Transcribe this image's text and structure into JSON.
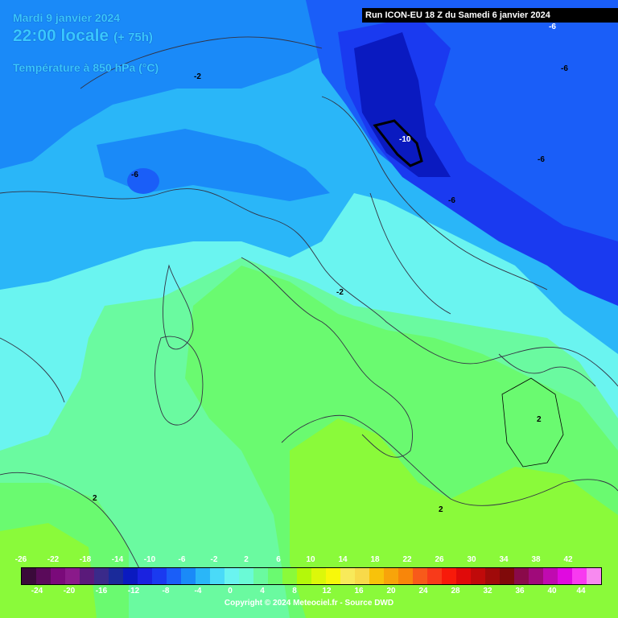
{
  "header": {
    "date": "Mardi 9 janvier 2024",
    "time": "22:00 locale",
    "lead": "(+ 75h)",
    "variable": "Température à 850 hPa (°C)"
  },
  "run_banner": "Run ICON-EU 18 Z du Samedi 6 janvier 2024",
  "isotherm_labels": [
    "-2",
    "-2",
    "-6",
    "-6",
    "-6",
    "-6",
    "-6",
    "-10",
    "2",
    "2",
    "2"
  ],
  "legend": {
    "top_labels": [
      "-26",
      "-22",
      "-18",
      "-14",
      "-10",
      "-6",
      "-2",
      "2",
      "6",
      "10",
      "14",
      "18",
      "22",
      "26",
      "30",
      "34",
      "38",
      "42"
    ],
    "bottom_labels": [
      "-24",
      "-20",
      "-16",
      "-12",
      "-8",
      "-4",
      "0",
      "4",
      "8",
      "12",
      "16",
      "20",
      "24",
      "28",
      "32",
      "36",
      "40",
      "44"
    ],
    "colors": [
      "#3a0a3a",
      "#5a0a5a",
      "#7a0a7a",
      "#8a1a8a",
      "#5a1a7a",
      "#3a2a8a",
      "#1a2a9a",
      "#0a1ac0",
      "#1a22e0",
      "#1a3af0",
      "#1a5ef8",
      "#1a8af8",
      "#2ab6f8",
      "#4adaf8",
      "#6af4f0",
      "#6afad6",
      "#6afaa0",
      "#6afa70",
      "#8afa3a",
      "#b4f80a",
      "#dcf80a",
      "#f8f80a",
      "#f8ea5a",
      "#f8da4a",
      "#f8c20a",
      "#f8a40a",
      "#f8860a",
      "#f85a1a",
      "#f83a1a",
      "#f81a0a",
      "#e00a0a",
      "#c00a0a",
      "#a00a0a",
      "#800a0a",
      "#8a0a4a",
      "#a00a7a",
      "#c00ab0",
      "#e00ae0",
      "#f83af0",
      "#f88af0"
    ]
  },
  "copyright": "Copyright © 2024 Meteociel.fr - Source DWD"
}
